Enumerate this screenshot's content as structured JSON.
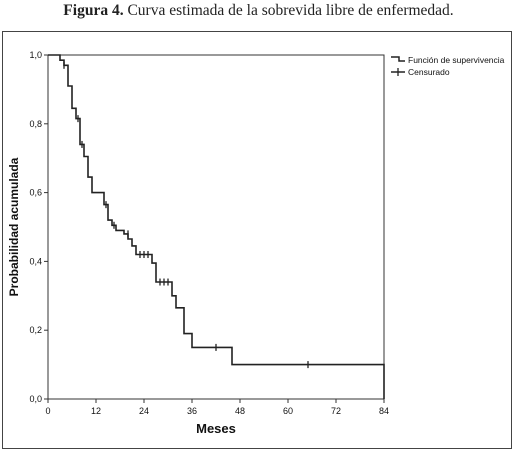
{
  "caption": {
    "figure": "Figura 4.",
    "text": " Curva estimada de la sobrevida libre de enfermedad."
  },
  "chart_data": {
    "type": "line",
    "subtype": "kaplan-meier",
    "xlabel": "Meses",
    "ylabel": "Probabilidad acumulada",
    "xlim": [
      0,
      84
    ],
    "ylim": [
      0,
      1
    ],
    "xticks": [
      0,
      12,
      24,
      36,
      48,
      60,
      72,
      84
    ],
    "xtick_labels": [
      "0",
      "12",
      "24",
      "36",
      "48",
      "60",
      "72",
      "84"
    ],
    "yticks": [
      0,
      0.2,
      0.4,
      0.6,
      0.8,
      1.0
    ],
    "ytick_labels": [
      "0,0",
      "0,2",
      "0,4",
      "0,6",
      "0,8",
      "1,0"
    ],
    "grid": false,
    "legend_position": "top-right, outside plot",
    "color": "#222222",
    "series": [
      {
        "name": "Función de supervivencia",
        "steps": [
          [
            0,
            1.0
          ],
          [
            3,
            1.0
          ],
          [
            3,
            0.985
          ],
          [
            4,
            0.985
          ],
          [
            4,
            0.97
          ],
          [
            5,
            0.97
          ],
          [
            5,
            0.91
          ],
          [
            6,
            0.91
          ],
          [
            6,
            0.845
          ],
          [
            7,
            0.845
          ],
          [
            7,
            0.815
          ],
          [
            8,
            0.815
          ],
          [
            8,
            0.74
          ],
          [
            9,
            0.74
          ],
          [
            9,
            0.705
          ],
          [
            10,
            0.705
          ],
          [
            10,
            0.645
          ],
          [
            11,
            0.645
          ],
          [
            11,
            0.6
          ],
          [
            14,
            0.6
          ],
          [
            14,
            0.565
          ],
          [
            15,
            0.565
          ],
          [
            15,
            0.52
          ],
          [
            16,
            0.52
          ],
          [
            16,
            0.505
          ],
          [
            17,
            0.505
          ],
          [
            17,
            0.49
          ],
          [
            19,
            0.49
          ],
          [
            19,
            0.48
          ],
          [
            20,
            0.48
          ],
          [
            20,
            0.465
          ],
          [
            21,
            0.465
          ],
          [
            21,
            0.445
          ],
          [
            22,
            0.445
          ],
          [
            22,
            0.42
          ],
          [
            26,
            0.42
          ],
          [
            26,
            0.395
          ],
          [
            27,
            0.395
          ],
          [
            27,
            0.34
          ],
          [
            31,
            0.34
          ],
          [
            31,
            0.3
          ],
          [
            32,
            0.3
          ],
          [
            32,
            0.265
          ],
          [
            34,
            0.265
          ],
          [
            34,
            0.19
          ],
          [
            36,
            0.19
          ],
          [
            36,
            0.15
          ],
          [
            46,
            0.15
          ],
          [
            46,
            0.1
          ],
          [
            84,
            0.1
          ],
          [
            84,
            0.0
          ]
        ]
      },
      {
        "name": "Censurado",
        "points": [
          [
            4,
            0.97
          ],
          [
            7.5,
            0.815
          ],
          [
            8.5,
            0.74
          ],
          [
            14.5,
            0.565
          ],
          [
            16.5,
            0.505
          ],
          [
            20,
            0.48
          ],
          [
            23,
            0.42
          ],
          [
            24,
            0.42
          ],
          [
            25,
            0.42
          ],
          [
            28,
            0.34
          ],
          [
            29,
            0.34
          ],
          [
            30,
            0.34
          ],
          [
            42,
            0.15
          ],
          [
            65,
            0.1
          ]
        ]
      }
    ]
  }
}
